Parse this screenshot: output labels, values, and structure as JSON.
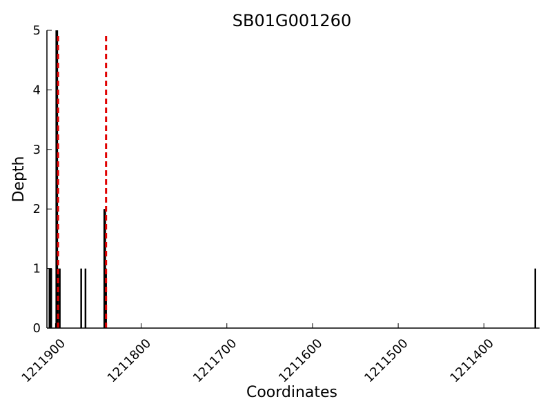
{
  "chart_data": {
    "type": "bar",
    "title": "SB01G001260",
    "xlabel": "Coordinates",
    "ylabel": "Depth",
    "xlim": [
      1211910,
      1211335
    ],
    "ylim": [
      0,
      5
    ],
    "x_inverted": true,
    "xticks": [
      1211900,
      1211800,
      1211700,
      1211600,
      1211500,
      1211400
    ],
    "xtick_labels": [
      "1211900",
      "1211800",
      "1211700",
      "1211600",
      "1211500",
      "1211400"
    ],
    "yticks": [
      0,
      1,
      2,
      3,
      4,
      5
    ],
    "ytick_labels": [
      "0",
      "1",
      "2",
      "3",
      "4",
      "5"
    ],
    "grid": false,
    "series": [
      {
        "color": "#000000",
        "points": [
          {
            "x": 1211907,
            "y": 1
          },
          {
            "x": 1211906,
            "y": 1
          },
          {
            "x": 1211905,
            "y": 1
          },
          {
            "x": 1211899,
            "y": 5
          },
          {
            "x": 1211898,
            "y": 5
          },
          {
            "x": 1211896,
            "y": 1
          },
          {
            "x": 1211895,
            "y": 1
          },
          {
            "x": 1211870,
            "y": 1
          },
          {
            "x": 1211865,
            "y": 1
          },
          {
            "x": 1211843,
            "y": 2
          },
          {
            "x": 1211842,
            "y": 2
          },
          {
            "x": 1211841,
            "y": 1
          },
          {
            "x": 1211340,
            "y": 1
          }
        ]
      }
    ],
    "reference_lines": [
      {
        "x": 1211897,
        "color": "#e00000",
        "style": "dashed"
      },
      {
        "x": 1211841,
        "color": "#e00000",
        "style": "dashed"
      }
    ]
  }
}
